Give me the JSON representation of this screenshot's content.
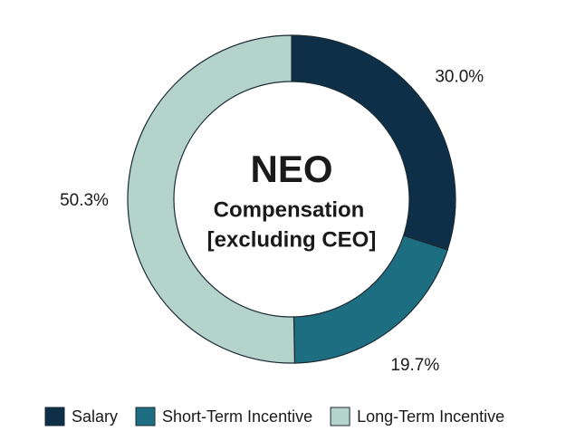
{
  "chart_data": {
    "type": "donut",
    "center_text": [
      "NEO",
      "Compensation",
      "[excluding CEO]"
    ],
    "series": [
      {
        "name": "Salary",
        "color": "#0d2f47",
        "values": [
          30.0
        ],
        "value_labels": [
          "30.0%"
        ]
      },
      {
        "name": "Short-Term Incentive",
        "color": "#1e6e82",
        "values": [
          19.7
        ],
        "value_labels": [
          "19.7%"
        ]
      },
      {
        "name": "Long-Term Incentive",
        "color": "#b3d3cb",
        "values": [
          50.3
        ],
        "value_labels": [
          "50.3%"
        ]
      }
    ],
    "legend": "bottom"
  }
}
